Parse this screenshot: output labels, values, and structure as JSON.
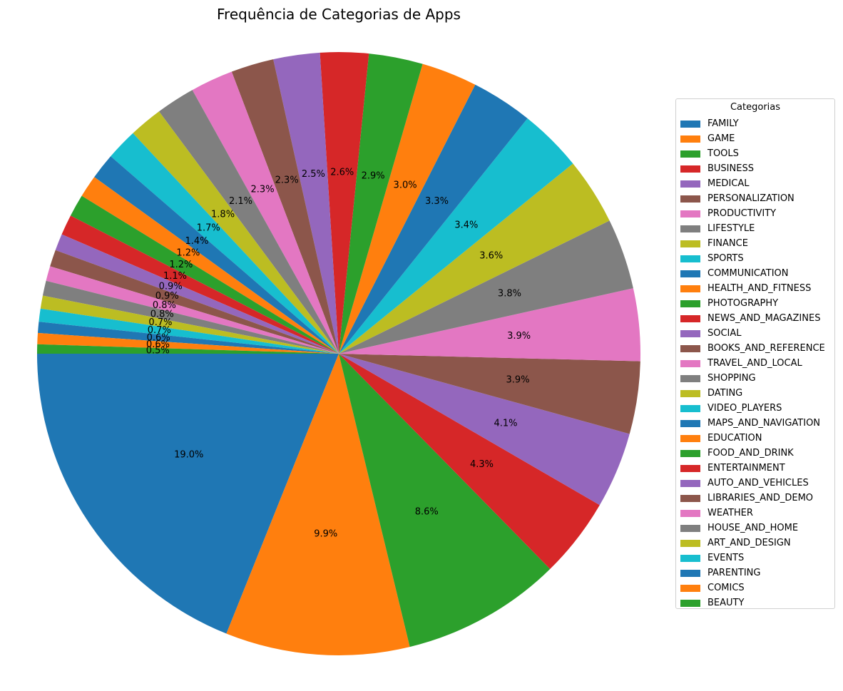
{
  "chart_data": {
    "type": "pie",
    "title": "Frequência de Categorias de Apps",
    "legend_title": "Categorias",
    "legend_position": "right",
    "start_angle": 180,
    "direction": "counterclockwise",
    "slices": [
      {
        "label": "FAMILY",
        "value": 19.0,
        "color": "#1f77b4"
      },
      {
        "label": "GAME",
        "value": 9.9,
        "color": "#ff7f0e"
      },
      {
        "label": "TOOLS",
        "value": 8.6,
        "color": "#2ca02c"
      },
      {
        "label": "BUSINESS",
        "value": 4.3,
        "color": "#d62728"
      },
      {
        "label": "MEDICAL",
        "value": 4.1,
        "color": "#9467bd"
      },
      {
        "label": "PERSONALIZATION",
        "value": 3.9,
        "color": "#8c564b"
      },
      {
        "label": "PRODUCTIVITY",
        "value": 3.9,
        "color": "#e377c2"
      },
      {
        "label": "LIFESTYLE",
        "value": 3.8,
        "color": "#7f7f7f"
      },
      {
        "label": "FINANCE",
        "value": 3.6,
        "color": "#bcbd22"
      },
      {
        "label": "SPORTS",
        "value": 3.4,
        "color": "#17becf"
      },
      {
        "label": "COMMUNICATION",
        "value": 3.3,
        "color": "#1f77b4"
      },
      {
        "label": "HEALTH_AND_FITNESS",
        "value": 3.0,
        "color": "#ff7f0e"
      },
      {
        "label": "PHOTOGRAPHY",
        "value": 2.9,
        "color": "#2ca02c"
      },
      {
        "label": "NEWS_AND_MAGAZINES",
        "value": 2.6,
        "color": "#d62728"
      },
      {
        "label": "SOCIAL",
        "value": 2.5,
        "color": "#9467bd"
      },
      {
        "label": "BOOKS_AND_REFERENCE",
        "value": 2.3,
        "color": "#8c564b"
      },
      {
        "label": "TRAVEL_AND_LOCAL",
        "value": 2.3,
        "color": "#e377c2"
      },
      {
        "label": "SHOPPING",
        "value": 2.1,
        "color": "#7f7f7f"
      },
      {
        "label": "DATING",
        "value": 1.8,
        "color": "#bcbd22"
      },
      {
        "label": "VIDEO_PLAYERS",
        "value": 1.7,
        "color": "#17becf"
      },
      {
        "label": "MAPS_AND_NAVIGATION",
        "value": 1.4,
        "color": "#1f77b4"
      },
      {
        "label": "EDUCATION",
        "value": 1.2,
        "color": "#ff7f0e"
      },
      {
        "label": "FOOD_AND_DRINK",
        "value": 1.2,
        "color": "#2ca02c"
      },
      {
        "label": "ENTERTAINMENT",
        "value": 1.1,
        "color": "#d62728"
      },
      {
        "label": "AUTO_AND_VEHICLES",
        "value": 0.9,
        "color": "#9467bd"
      },
      {
        "label": "LIBRARIES_AND_DEMO",
        "value": 0.9,
        "color": "#8c564b"
      },
      {
        "label": "WEATHER",
        "value": 0.8,
        "color": "#e377c2"
      },
      {
        "label": "HOUSE_AND_HOME",
        "value": 0.8,
        "color": "#7f7f7f"
      },
      {
        "label": "ART_AND_DESIGN",
        "value": 0.7,
        "color": "#bcbd22"
      },
      {
        "label": "EVENTS",
        "value": 0.7,
        "color": "#17becf"
      },
      {
        "label": "PARENTING",
        "value": 0.6,
        "color": "#1f77b4"
      },
      {
        "label": "COMICS",
        "value": 0.6,
        "color": "#ff7f0e"
      },
      {
        "label": "BEAUTY",
        "value": 0.5,
        "color": "#2ca02c"
      }
    ]
  }
}
